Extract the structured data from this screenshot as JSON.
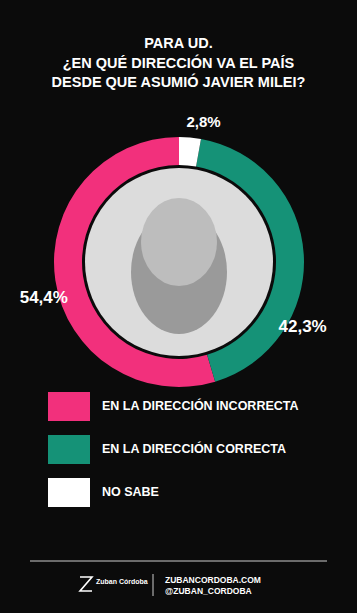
{
  "chart_data": {
    "type": "donut",
    "title": "PARA UD.",
    "subtitle": "¿EN QUÉ DIRECCIÓN VA EL PAÍS DESDE QUE ASUMIÓ JAVIER MILEI?",
    "categories": [
      "EN LA DIRECCIÓN INCORRECTA",
      "EN LA DIRECCIÓN CORRECTA",
      "NO SABE"
    ],
    "values": [
      54.4,
      42.3,
      2.8
    ],
    "value_labels": [
      "54,4%",
      "42,3%",
      "2,8%"
    ],
    "colors": [
      "#f2307c",
      "#159277",
      "#ffffff"
    ],
    "data_labels": true,
    "legend": "bottom",
    "annotations": [
      "Zuban Córdoba",
      "ZUBANCORDOBA.COM",
      "@ZUBAN_CORDOBA"
    ]
  }
}
